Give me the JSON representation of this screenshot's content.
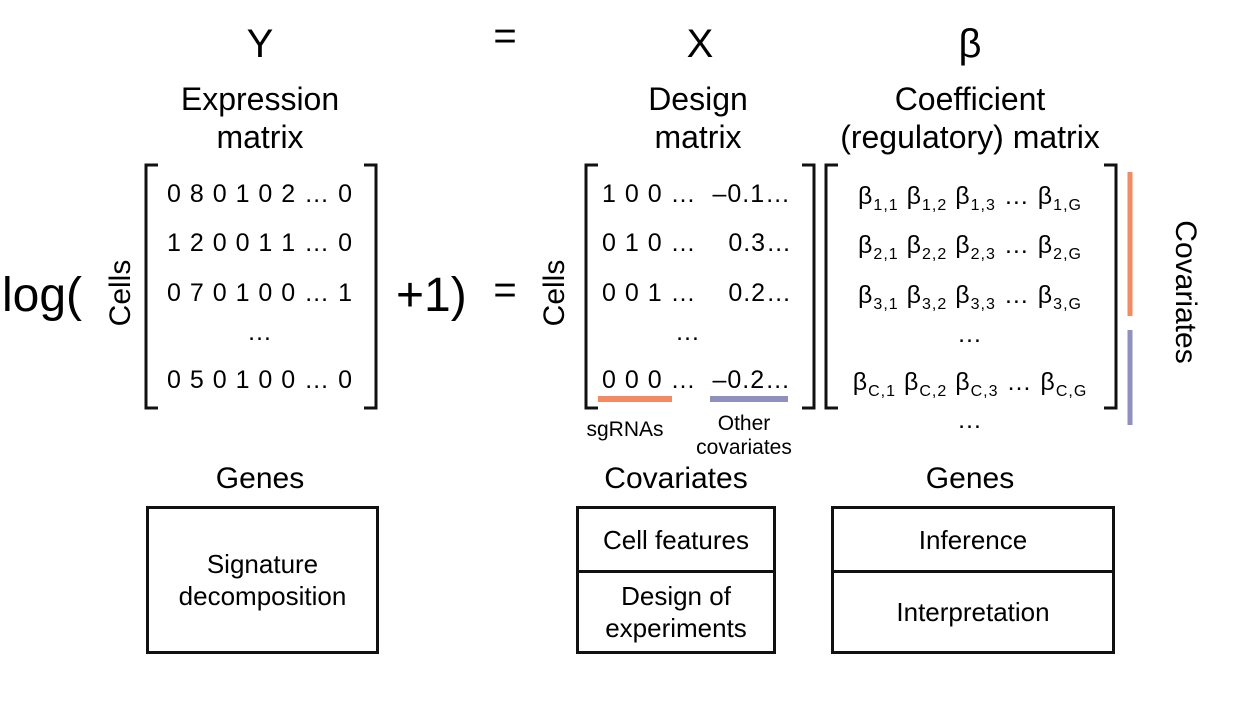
{
  "symbols": {
    "y": "Y",
    "eq": "=",
    "x": "X",
    "beta": "β"
  },
  "headers": {
    "expression": [
      "Expression",
      "matrix"
    ],
    "design": [
      "Design",
      "matrix"
    ],
    "coefficient": [
      "Coefficient",
      "(regulatory) matrix"
    ]
  },
  "equation": {
    "log": "log(",
    "cells": "Cells",
    "plus_one": "+1)",
    "eq2": "="
  },
  "y_matrix": {
    "rows": [
      "0 8 0 1 0 2 … 0",
      "1 2 0 0 1 1 … 0",
      "0 7 0 1 0 0 … 1",
      "…",
      "0 5 0 1 0 0 … 0"
    ]
  },
  "x_matrix": {
    "rows": [
      "1 0 0 …  –0.1…",
      "0 1 0 …    0.3…",
      "0 0 1 …    0.2…",
      "…",
      "0 0 0 …  –0.2…"
    ],
    "sgrnas_label": "sgRNAs",
    "other_label": [
      "Other",
      "covariates"
    ],
    "sgrnas_color": "#f28b63",
    "other_color": "#8f90bd"
  },
  "beta_matrix": {
    "rows": [
      [
        [
          "β",
          "1,1"
        ],
        [
          "β",
          "1,2"
        ],
        [
          "β",
          "1,3"
        ],
        [
          "…",
          ""
        ],
        [
          "β",
          "1,G"
        ]
      ],
      [
        [
          "β",
          "2,1"
        ],
        [
          "β",
          "2,2"
        ],
        [
          "β",
          "2,3"
        ],
        [
          "…",
          ""
        ],
        [
          "β",
          "2,G"
        ]
      ],
      [
        [
          "β",
          "3,1"
        ],
        [
          "β",
          "3,2"
        ],
        [
          "β",
          "3,3"
        ],
        [
          "…",
          ""
        ],
        [
          "β",
          "3,G"
        ]
      ],
      [
        [
          "…",
          ""
        ]
      ],
      [
        [
          "β",
          "C,1"
        ],
        [
          "β",
          "C,2"
        ],
        [
          "β",
          "C,3"
        ],
        [
          "…",
          ""
        ],
        [
          "β",
          "C,G"
        ]
      ]
    ],
    "below": "…",
    "covariates_label": "Covariates"
  },
  "bottom": {
    "genes_left": "Genes",
    "covariates": "Covariates",
    "genes_right": "Genes",
    "box_left": [
      "Signature",
      "decomposition"
    ],
    "box_mid_top": "Cell features",
    "box_mid_bottom": [
      "Design of",
      "experiments"
    ],
    "box_right_top": "Inference",
    "box_right_bottom": "Interpretation"
  }
}
